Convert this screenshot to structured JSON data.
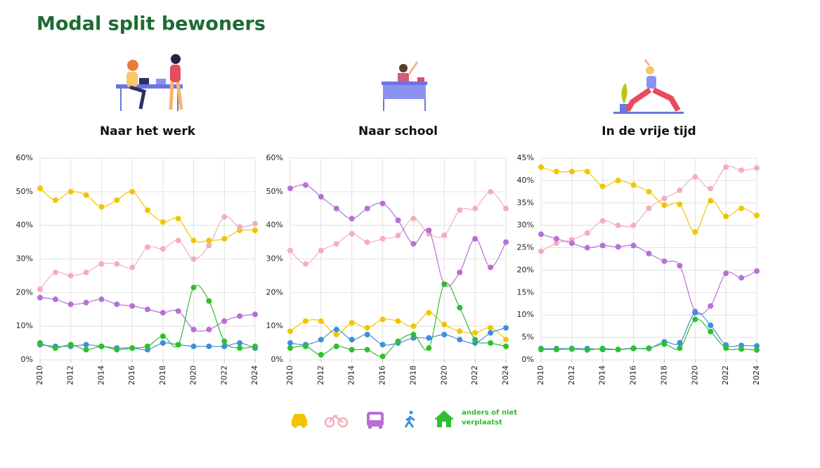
{
  "page_title": "Modal split bewoners",
  "legend_text": "anders of niet verplaatst",
  "chart_data": [
    {
      "type": "line",
      "title": "Naar het werk",
      "x": [
        2010,
        2011,
        2012,
        2013,
        2014,
        2015,
        2016,
        2017,
        2018,
        2019,
        2020,
        2021,
        2022,
        2023,
        2024
      ],
      "xlim": [
        2010,
        2024
      ],
      "xticks": [
        2010,
        2012,
        2014,
        2016,
        2018,
        2020,
        2022,
        2024
      ],
      "ylim": [
        0,
        60
      ],
      "yticks": [
        {
          "value": 0,
          "label": "0%"
        },
        {
          "value": 10,
          "label": "10%"
        },
        {
          "value": 20,
          "label": "20%"
        },
        {
          "value": 30,
          "label": "30%"
        },
        {
          "value": 40,
          "label": "40%"
        },
        {
          "value": 50,
          "label": "50%"
        },
        {
          "value": 60,
          "label": "60%"
        }
      ],
      "grid": true,
      "series": [
        {
          "color": "#f2c500",
          "values": [
            51,
            47.5,
            50,
            49,
            45.5,
            47.5,
            50,
            44.5,
            41,
            42,
            35.5,
            35.5,
            36,
            38.5,
            38.5
          ]
        },
        {
          "color": "#f4aebb",
          "values": [
            21,
            26,
            25,
            26,
            28.5,
            28.5,
            27.5,
            33.5,
            33,
            35.5,
            30,
            34,
            42.5,
            39.5,
            40.5
          ]
        },
        {
          "color": "#b86fd6",
          "values": [
            18.5,
            18,
            16.5,
            17,
            18,
            16.5,
            16,
            15,
            14,
            14.5,
            9,
            9,
            11.5,
            13,
            13.5
          ]
        },
        {
          "color": "#3f8fdb",
          "values": [
            4.5,
            4,
            4,
            4.5,
            4,
            3.5,
            3.5,
            3,
            5,
            4.5,
            4,
            4,
            4,
            5,
            3.5
          ]
        },
        {
          "color": "#2ebf2e",
          "values": [
            5,
            3.5,
            4.5,
            3,
            4,
            3,
            3.5,
            4,
            7,
            4.5,
            21.5,
            17.5,
            5.5,
            3.5,
            4
          ]
        }
      ]
    },
    {
      "type": "line",
      "title": "Naar school",
      "x": [
        2010,
        2011,
        2012,
        2013,
        2014,
        2015,
        2016,
        2017,
        2018,
        2019,
        2020,
        2021,
        2022,
        2023,
        2024
      ],
      "xlim": [
        2010,
        2024
      ],
      "xticks": [
        2010,
        2012,
        2014,
        2016,
        2018,
        2020,
        2022,
        2024
      ],
      "ylim": [
        0,
        60
      ],
      "yticks": [
        {
          "value": 0,
          "label": "0%"
        },
        {
          "value": 10,
          "label": "10%"
        },
        {
          "value": 20,
          "label": "20%"
        },
        {
          "value": 30,
          "label": "30%"
        },
        {
          "value": 40,
          "label": "40%"
        },
        {
          "value": 50,
          "label": "50%"
        },
        {
          "value": 60,
          "label": "60%"
        }
      ],
      "grid": true,
      "series": [
        {
          "color": "#f2c500",
          "values": [
            8.5,
            11.5,
            11.5,
            7.5,
            11,
            9.5,
            12,
            11.5,
            10,
            14,
            10.5,
            8.5,
            8,
            9.5,
            6
          ]
        },
        {
          "color": "#f4aebb",
          "values": [
            32.5,
            28.5,
            32.5,
            34.5,
            37.5,
            35,
            36,
            37,
            42,
            37.5,
            37,
            44.5,
            45,
            50,
            45
          ]
        },
        {
          "color": "#b86fd6",
          "values": [
            51,
            52,
            48.5,
            45,
            42,
            45,
            46.5,
            41.5,
            34.5,
            38.5,
            22.5,
            26,
            36,
            27.5,
            35
          ]
        },
        {
          "color": "#3f8fdb",
          "values": [
            5,
            4.5,
            6,
            9,
            6,
            7.5,
            4.5,
            5,
            6.5,
            6.5,
            7.5,
            6,
            5,
            8,
            9.5
          ]
        },
        {
          "color": "#2ebf2e",
          "values": [
            3.5,
            4,
            1.5,
            4,
            3,
            3,
            1,
            5.5,
            7.5,
            3.5,
            22.5,
            15.5,
            6,
            5,
            4
          ]
        }
      ]
    },
    {
      "type": "line",
      "title": "In de vrije tijd",
      "x": [
        2010,
        2011,
        2012,
        2013,
        2014,
        2015,
        2016,
        2017,
        2018,
        2019,
        2020,
        2021,
        2022,
        2023,
        2024
      ],
      "xlim": [
        2010,
        2024
      ],
      "xticks": [
        2010,
        2012,
        2014,
        2016,
        2018,
        2020,
        2022,
        2024
      ],
      "ylim": [
        0,
        45
      ],
      "yticks": [
        {
          "value": 0,
          "label": "0%"
        },
        {
          "value": 5,
          "label": "5%"
        },
        {
          "value": 10,
          "label": "10%"
        },
        {
          "value": 15,
          "label": "15%"
        },
        {
          "value": 20,
          "label": "20%"
        },
        {
          "value": 25,
          "label": "25%"
        },
        {
          "value": 30,
          "label": "30%"
        },
        {
          "value": 35,
          "label": "35%"
        },
        {
          "value": 40,
          "label": "40%"
        },
        {
          "value": 45,
          "label": "45%"
        }
      ],
      "grid": true,
      "series": [
        {
          "color": "#f2c500",
          "values": [
            43,
            42,
            42,
            42,
            38.7,
            40,
            39,
            37.5,
            34.5,
            34.7,
            28.5,
            35.5,
            32,
            33.8,
            32.2
          ]
        },
        {
          "color": "#f4aebb",
          "values": [
            24.2,
            26,
            26.8,
            28.3,
            31,
            30,
            30,
            33.8,
            36,
            37.8,
            40.8,
            38.2,
            43,
            42.3,
            42.8
          ]
        },
        {
          "color": "#b86fd6",
          "values": [
            28,
            27,
            26,
            25,
            25.5,
            25.2,
            25.5,
            23.7,
            22,
            21,
            10.8,
            12,
            19.3,
            18.3,
            19.8
          ]
        },
        {
          "color": "#3f8fdb",
          "values": [
            2.5,
            2.5,
            2.5,
            2.5,
            2.3,
            2.3,
            2.6,
            2.5,
            4,
            3.8,
            10.5,
            7.7,
            3.3,
            3.2,
            3.1
          ]
        },
        {
          "color": "#2ebf2e",
          "values": [
            2.3,
            2.3,
            2.4,
            2.2,
            2.5,
            2.3,
            2.5,
            2.6,
            3.5,
            2.6,
            9,
            6.3,
            2.6,
            2.4,
            2.2
          ]
        }
      ]
    }
  ]
}
